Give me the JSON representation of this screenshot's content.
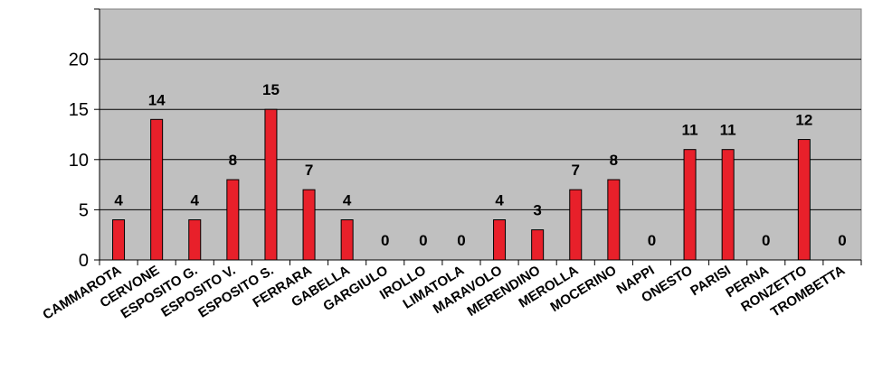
{
  "chart_data": {
    "type": "bar",
    "title": "",
    "xlabel": "",
    "ylabel": "",
    "categories": [
      "CAMMAROTA",
      "CERVONE",
      "ESPOSITO G.",
      "ESPOSITO V.",
      "ESPOSITO S.",
      "FERRARA",
      "GABELLA",
      "GARGIULO",
      "IROLLO",
      "LIMATOLA",
      "MARAVOLO",
      "MERENDINO",
      "MEROLLA",
      "MOCERINO",
      "NAPPI",
      "ONESTO",
      "PARISI",
      "PERNA",
      "RONZETTO",
      "TROMBETTA"
    ],
    "values": [
      4,
      14,
      4,
      8,
      15,
      7,
      4,
      0,
      0,
      0,
      4,
      3,
      7,
      8,
      0,
      11,
      11,
      0,
      12,
      0
    ],
    "ylim": [
      0,
      25
    ],
    "yticks": [
      0,
      5,
      10,
      15,
      20
    ],
    "grid": true,
    "legend": "none",
    "colors": {
      "bar": "#e8202a",
      "bar_stroke": "#000000",
      "plot_background": "#c0c0c0",
      "gridline": "#000000"
    }
  }
}
